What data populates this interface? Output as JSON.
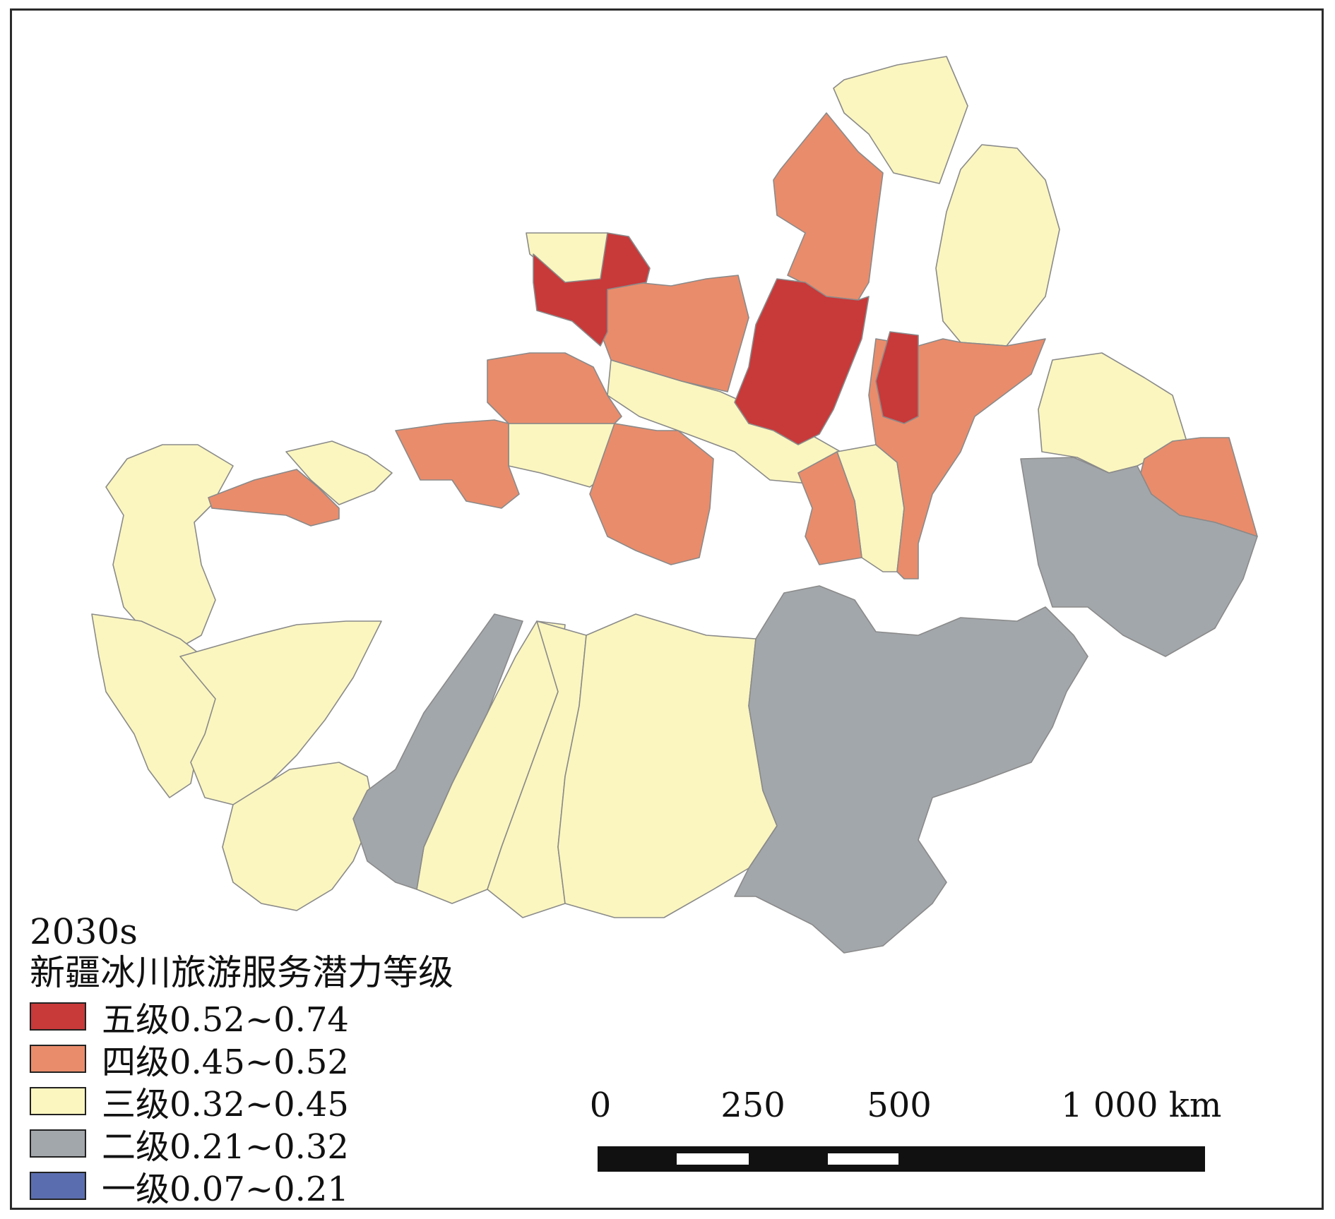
{
  "map": {
    "title_year": "2030s",
    "title": "新疆冰川旅游服务潜力等级",
    "legend": [
      {
        "level": 5,
        "label": "五级0.52~0.74",
        "color": "#c8393a"
      },
      {
        "level": 4,
        "label": "四级0.45~0.52",
        "color": "#e98c6b"
      },
      {
        "level": 3,
        "label": "三级0.32~0.45",
        "color": "#fbf6bf"
      },
      {
        "level": 2,
        "label": "二级0.21~0.32",
        "color": "#a2a7ab"
      },
      {
        "level": 1,
        "label": "一级0.07~0.21",
        "color": "#5a6eaf"
      }
    ],
    "scale_bar": {
      "labels": [
        "0",
        "250",
        "500",
        "1 000 km"
      ],
      "stops_km": [
        0,
        250,
        500,
        1000
      ]
    }
  }
}
